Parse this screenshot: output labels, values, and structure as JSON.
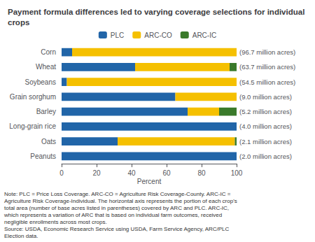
{
  "chart_data": {
    "type": "bar",
    "orientation": "horizontal",
    "stacked": true,
    "title": "Payment formula differences led to varying coverage selections for individual crops",
    "categories": [
      "Corn",
      "Wheat",
      "Soybeans",
      "Grain sorghum",
      "Barley",
      "Long-grain rice",
      "Oats",
      "Peanuts"
    ],
    "series": [
      {
        "name": "PLC",
        "color": "#2165A8",
        "values": [
          6,
          42,
          3,
          65,
          72,
          100,
          32,
          100
        ]
      },
      {
        "name": "ARC-CO",
        "color": "#F5C000",
        "values": [
          94,
          54,
          97,
          35,
          18,
          0,
          67,
          0
        ]
      },
      {
        "name": "ARC-IC",
        "color": "#3A7A2A",
        "values": [
          0,
          4,
          0,
          0,
          10,
          0,
          1,
          0
        ]
      }
    ],
    "annotations": [
      "(96.7 million acres)",
      "(63.7 million acres)",
      "(54.5 million acres)",
      "(9.0 million acres)",
      "(5.2 million acres)",
      "(4.0 million acres)",
      "(2.1 million acres)",
      "(2.0 million acres)"
    ],
    "notes": [
      "Note: PLC = Price Loss Coverage. ARC-CO = Agriculture Risk Coverage-County. ARC-IC =",
      "Agriculture Risk Coverage-Individual. The horizontal axis represents the portion of each crop's",
      "total area (number of base acres listed in parentheses) covered by ARC and PLC. ARC-IC,",
      "which represents a variation of ARC that is based on individual farm outcomes, received",
      "negligible enrollments across most crops.",
      "Source: USDA, Economic Research Service using USDA, Farm Service Agency, ARC/PLC",
      "Election data."
    ],
    "xlabel": "Percent",
    "xlim": [
      0,
      100
    ],
    "xticks": [
      0,
      20,
      40,
      60,
      80,
      100
    ],
    "grid": false,
    "legend": "top"
  }
}
